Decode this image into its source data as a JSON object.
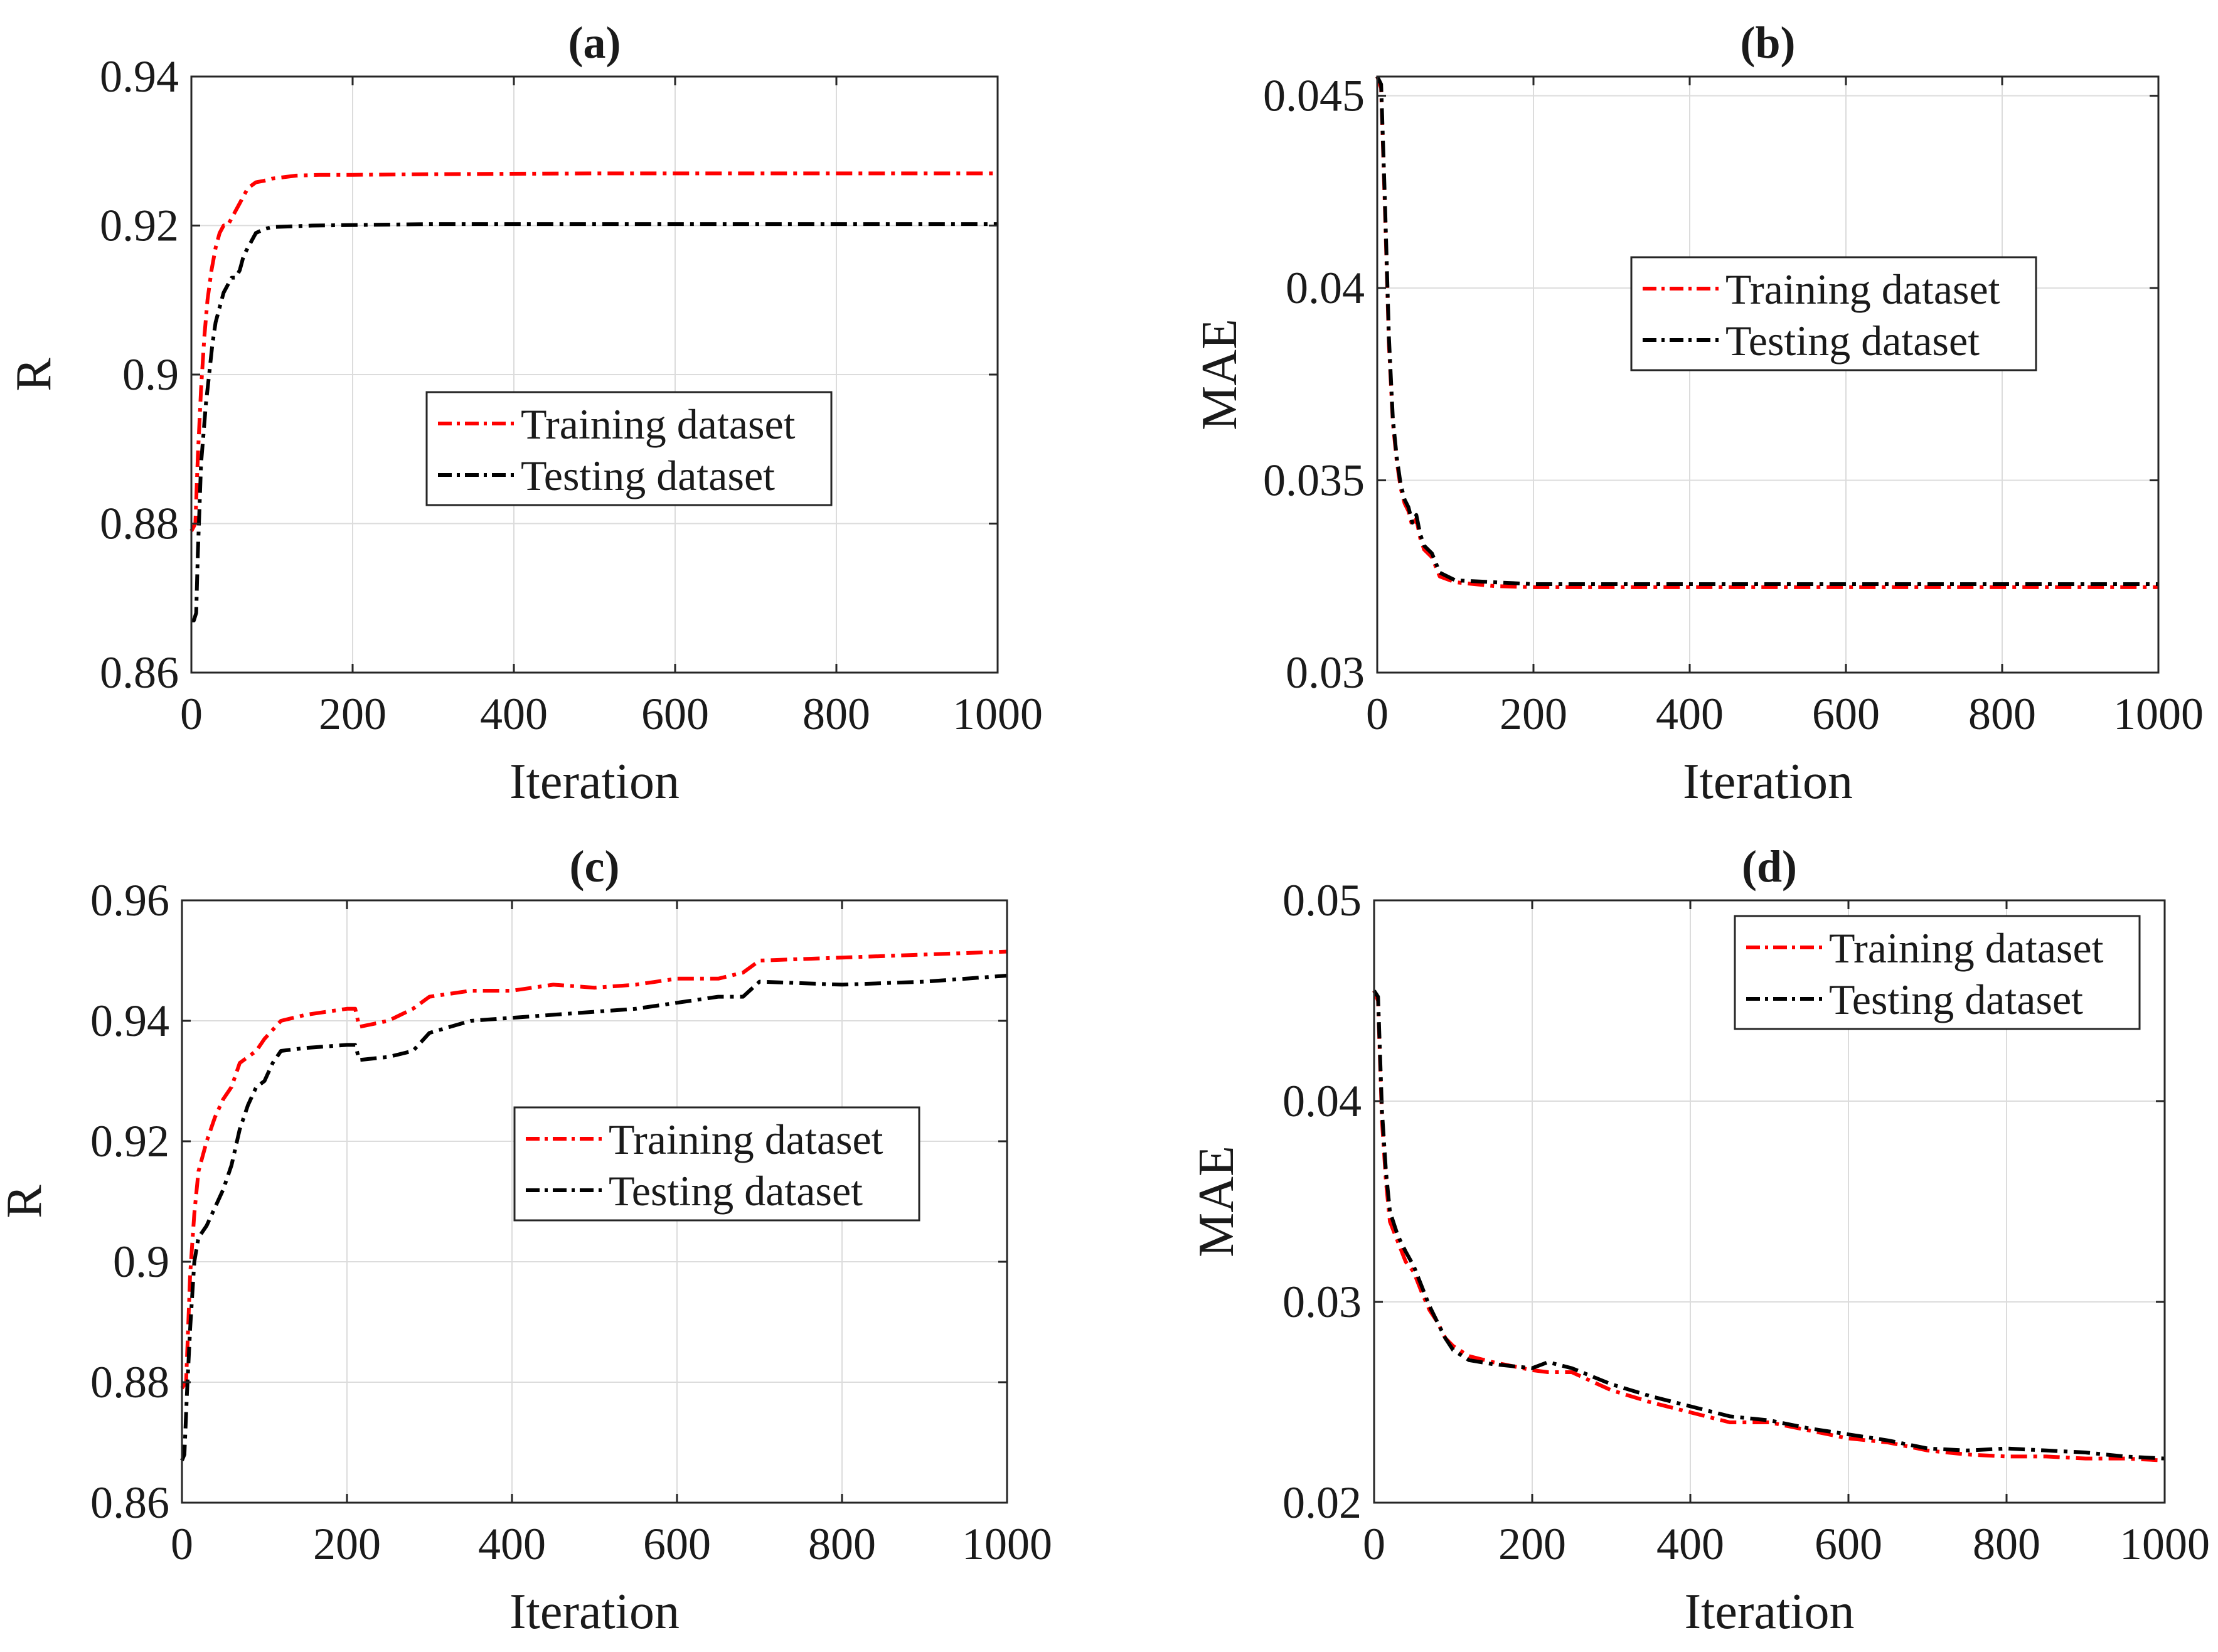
{
  "figure": {
    "colors": {
      "training": "#ff0000",
      "testing": "#000000",
      "grid": "#dcdcdc",
      "axis": "#262626"
    }
  },
  "chart_data": [
    {
      "panel": "a",
      "type": "line",
      "title": "(a)",
      "xlabel": "Iteration",
      "ylabel": "R",
      "xlim": [
        0,
        1000
      ],
      "ylim": [
        0.86,
        0.94
      ],
      "xticks": [
        0,
        200,
        400,
        600,
        800,
        1000
      ],
      "xtick_labels": [
        "0",
        "200",
        "400",
        "600",
        "800",
        "1000"
      ],
      "yticks": [
        0.86,
        0.88,
        0.9,
        0.92,
        0.94
      ],
      "ytick_labels": [
        "0.86",
        "0.88",
        "0.9",
        "0.92",
        "0.94"
      ],
      "grid": true,
      "legend_position": "center",
      "series": [
        {
          "name": "Training dataset",
          "color": "#ff0000",
          "x": [
            0,
            5,
            8,
            12,
            16,
            20,
            25,
            30,
            35,
            40,
            45,
            50,
            55,
            60,
            70,
            80,
            90,
            100,
            130,
            160,
            200,
            300,
            500,
            1000
          ],
          "y": [
            0.879,
            0.88,
            0.889,
            0.898,
            0.905,
            0.91,
            0.914,
            0.917,
            0.919,
            0.92,
            0.92,
            0.921,
            0.922,
            0.923,
            0.925,
            0.9258,
            0.926,
            0.9263,
            0.9267,
            0.9268,
            0.9268,
            0.9269,
            0.927,
            0.927
          ]
        },
        {
          "name": "Testing dataset",
          "color": "#000000",
          "x": [
            0,
            3,
            6,
            8,
            10,
            12,
            15,
            18,
            22,
            26,
            30,
            35,
            40,
            45,
            50,
            55,
            60,
            65,
            70,
            80,
            90,
            100,
            150,
            300,
            1000
          ],
          "y": [
            0.867,
            0.867,
            0.868,
            0.876,
            0.882,
            0.888,
            0.892,
            0.896,
            0.9,
            0.904,
            0.907,
            0.909,
            0.911,
            0.912,
            0.913,
            0.913,
            0.914,
            0.916,
            0.917,
            0.919,
            0.9195,
            0.9198,
            0.92,
            0.9202,
            0.9202
          ]
        }
      ]
    },
    {
      "panel": "b",
      "type": "line",
      "title": "(b)",
      "xlabel": "Iteration",
      "ylabel": "MAE",
      "xlim": [
        0,
        1000
      ],
      "ylim": [
        0.03,
        0.0455
      ],
      "xticks": [
        0,
        200,
        400,
        600,
        800,
        1000
      ],
      "xtick_labels": [
        "0",
        "200",
        "400",
        "600",
        "800",
        "1000"
      ],
      "yticks": [
        0.03,
        0.035,
        0.04,
        0.045
      ],
      "ytick_labels": [
        "0.03",
        "0.035",
        "0.04",
        "0.045"
      ],
      "grid": true,
      "legend_position": "upper-center",
      "series": [
        {
          "name": "Training dataset",
          "color": "#ff0000",
          "x": [
            0,
            5,
            10,
            15,
            20,
            25,
            30,
            35,
            40,
            45,
            50,
            55,
            60,
            70,
            80,
            100,
            150,
            200,
            300,
            1000
          ],
          "y": [
            0.0455,
            0.0452,
            0.042,
            0.0385,
            0.0365,
            0.0355,
            0.0348,
            0.0344,
            0.0342,
            0.0338,
            0.034,
            0.0335,
            0.0332,
            0.033,
            0.0325,
            0.03235,
            0.03225,
            0.03222,
            0.03222,
            0.03222
          ]
        },
        {
          "name": "Testing dataset",
          "color": "#000000",
          "x": [
            0,
            5,
            10,
            15,
            20,
            25,
            30,
            35,
            40,
            45,
            50,
            55,
            60,
            70,
            80,
            100,
            150,
            200,
            300,
            1000
          ],
          "y": [
            0.0455,
            0.0453,
            0.0422,
            0.0387,
            0.0366,
            0.0356,
            0.0349,
            0.0345,
            0.0343,
            0.0339,
            0.0341,
            0.0336,
            0.0333,
            0.0331,
            0.0326,
            0.0324,
            0.03235,
            0.0323,
            0.0323,
            0.0323
          ]
        }
      ]
    },
    {
      "panel": "c",
      "type": "line",
      "title": "(c)",
      "xlabel": "Iteration",
      "ylabel": "R",
      "xlim": [
        0,
        1000
      ],
      "ylim": [
        0.86,
        0.96
      ],
      "xticks": [
        0,
        200,
        400,
        600,
        800,
        1000
      ],
      "xtick_labels": [
        "0",
        "200",
        "400",
        "600",
        "800",
        "1000"
      ],
      "yticks": [
        0.86,
        0.88,
        0.9,
        0.92,
        0.94,
        0.96
      ],
      "ytick_labels": [
        "0.86",
        "0.88",
        "0.9",
        "0.92",
        "0.94",
        "0.96"
      ],
      "grid": true,
      "legend_position": "center-right",
      "series": [
        {
          "name": "Training dataset",
          "color": "#ff0000",
          "x": [
            0,
            5,
            10,
            15,
            20,
            30,
            40,
            50,
            60,
            70,
            80,
            90,
            100,
            120,
            150,
            200,
            210,
            215,
            250,
            280,
            300,
            350,
            400,
            450,
            500,
            550,
            600,
            650,
            680,
            700,
            800,
            900,
            1000
          ],
          "y": [
            0.879,
            0.88,
            0.898,
            0.908,
            0.915,
            0.92,
            0.924,
            0.927,
            0.929,
            0.933,
            0.934,
            0.935,
            0.937,
            0.94,
            0.941,
            0.942,
            0.942,
            0.939,
            0.94,
            0.942,
            0.944,
            0.945,
            0.945,
            0.946,
            0.9455,
            0.946,
            0.947,
            0.947,
            0.948,
            0.95,
            0.9505,
            0.951,
            0.9515
          ]
        },
        {
          "name": "Testing dataset",
          "color": "#000000",
          "x": [
            0,
            3,
            6,
            10,
            15,
            20,
            30,
            40,
            50,
            60,
            70,
            80,
            90,
            100,
            110,
            120,
            150,
            200,
            210,
            215,
            250,
            280,
            300,
            350,
            400,
            450,
            500,
            550,
            600,
            650,
            680,
            700,
            800,
            900,
            1000
          ],
          "y": [
            0.867,
            0.868,
            0.878,
            0.889,
            0.9,
            0.904,
            0.906,
            0.909,
            0.912,
            0.916,
            0.922,
            0.926,
            0.929,
            0.93,
            0.933,
            0.935,
            0.9355,
            0.936,
            0.936,
            0.9335,
            0.934,
            0.935,
            0.938,
            0.94,
            0.9405,
            0.941,
            0.9415,
            0.942,
            0.943,
            0.944,
            0.944,
            0.9465,
            0.946,
            0.9465,
            0.9475
          ]
        }
      ]
    },
    {
      "panel": "d",
      "type": "line",
      "title": "(d)",
      "xlabel": "Iteration",
      "ylabel": "MAE",
      "xlim": [
        0,
        1000
      ],
      "ylim": [
        0.02,
        0.05
      ],
      "xticks": [
        0,
        200,
        400,
        600,
        800,
        1000
      ],
      "xtick_labels": [
        "0",
        "200",
        "400",
        "600",
        "800",
        "1000"
      ],
      "yticks": [
        0.02,
        0.03,
        0.04,
        0.05
      ],
      "ytick_labels": [
        "0.02",
        "0.03",
        "0.04",
        "0.05"
      ],
      "grid": true,
      "legend_position": "top-right",
      "series": [
        {
          "name": "Training dataset",
          "color": "#ff0000",
          "x": [
            0,
            5,
            10,
            15,
            20,
            30,
            40,
            50,
            60,
            70,
            80,
            90,
            100,
            120,
            150,
            200,
            220,
            250,
            300,
            350,
            400,
            450,
            500,
            550,
            600,
            650,
            700,
            750,
            800,
            850,
            900,
            950,
            1000
          ],
          "y": [
            0.0455,
            0.045,
            0.039,
            0.036,
            0.034,
            0.033,
            0.032,
            0.0315,
            0.0305,
            0.0296,
            0.029,
            0.0282,
            0.0278,
            0.0273,
            0.027,
            0.0266,
            0.0265,
            0.0265,
            0.0256,
            0.025,
            0.0245,
            0.024,
            0.024,
            0.0236,
            0.0232,
            0.023,
            0.0226,
            0.0224,
            0.0223,
            0.0223,
            0.0222,
            0.0222,
            0.0221
          ]
        },
        {
          "name": "Testing dataset",
          "color": "#000000",
          "x": [
            0,
            5,
            10,
            15,
            20,
            30,
            40,
            50,
            60,
            70,
            80,
            90,
            100,
            120,
            150,
            200,
            220,
            250,
            300,
            350,
            400,
            450,
            500,
            550,
            600,
            650,
            700,
            750,
            800,
            850,
            900,
            950,
            1000
          ],
          "y": [
            0.0455,
            0.0452,
            0.0395,
            0.0365,
            0.0345,
            0.0333,
            0.0325,
            0.0318,
            0.0308,
            0.0298,
            0.029,
            0.0282,
            0.0276,
            0.0271,
            0.0269,
            0.0267,
            0.027,
            0.0267,
            0.0259,
            0.0253,
            0.0248,
            0.0243,
            0.0241,
            0.0237,
            0.0234,
            0.0231,
            0.0227,
            0.0226,
            0.0227,
            0.0226,
            0.0225,
            0.0223,
            0.0222
          ]
        }
      ]
    }
  ]
}
